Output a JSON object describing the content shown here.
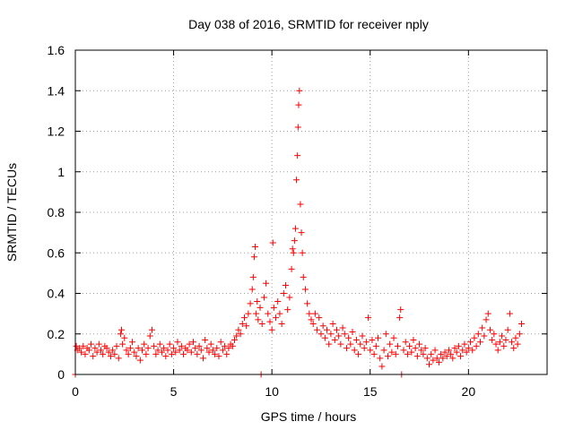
{
  "chart_data": {
    "type": "scatter",
    "title": "Day 038 of 2016, SRMTID for receiver nply",
    "xlabel": "GPS time / hours",
    "ylabel": "SRMTID / TECUs",
    "xlim": [
      0,
      24
    ],
    "ylim": [
      0,
      1.6
    ],
    "xticks": [
      0,
      5,
      10,
      15,
      20
    ],
    "yticks": [
      0,
      0.2,
      0.4,
      0.6,
      0.8,
      1,
      1.2,
      1.4,
      1.6
    ],
    "xtick_labels": [
      "0",
      "5",
      "10",
      "15",
      "20"
    ],
    "ytick_labels": [
      "0",
      "0.2",
      "0.4",
      "0.6",
      "0.8",
      "1",
      "1.2",
      "1.4",
      "1.6"
    ],
    "grid": true,
    "marker": "+",
    "color": "#ff0000",
    "series": [
      {
        "name": "SRMTID",
        "points": [
          [
            0.0,
            0.0
          ],
          [
            0.05,
            0.14
          ],
          [
            0.1,
            0.12
          ],
          [
            0.2,
            0.13
          ],
          [
            0.3,
            0.11
          ],
          [
            0.4,
            0.14
          ],
          [
            0.5,
            0.1
          ],
          [
            0.6,
            0.13
          ],
          [
            0.7,
            0.12
          ],
          [
            0.8,
            0.15
          ],
          [
            0.9,
            0.09
          ],
          [
            1.0,
            0.13
          ],
          [
            1.1,
            0.11
          ],
          [
            1.2,
            0.15
          ],
          [
            1.3,
            0.12
          ],
          [
            1.4,
            0.1
          ],
          [
            1.5,
            0.14
          ],
          [
            1.6,
            0.13
          ],
          [
            1.7,
            0.11
          ],
          [
            1.8,
            0.09
          ],
          [
            1.9,
            0.12
          ],
          [
            2.0,
            0.1
          ],
          [
            2.1,
            0.14
          ],
          [
            2.2,
            0.08
          ],
          [
            2.3,
            0.2
          ],
          [
            2.35,
            0.22
          ],
          [
            2.4,
            0.15
          ],
          [
            2.5,
            0.18
          ],
          [
            2.6,
            0.12
          ],
          [
            2.7,
            0.1
          ],
          [
            2.8,
            0.13
          ],
          [
            2.9,
            0.16
          ],
          [
            3.0,
            0.11
          ],
          [
            3.1,
            0.09
          ],
          [
            3.2,
            0.13
          ],
          [
            3.3,
            0.07
          ],
          [
            3.4,
            0.12
          ],
          [
            3.5,
            0.15
          ],
          [
            3.6,
            0.1
          ],
          [
            3.7,
            0.13
          ],
          [
            3.8,
            0.19
          ],
          [
            3.9,
            0.22
          ],
          [
            4.0,
            0.14
          ],
          [
            4.1,
            0.1
          ],
          [
            4.2,
            0.12
          ],
          [
            4.3,
            0.15
          ],
          [
            4.4,
            0.11
          ],
          [
            4.5,
            0.13
          ],
          [
            4.6,
            0.09
          ],
          [
            4.7,
            0.12
          ],
          [
            4.8,
            0.15
          ],
          [
            4.9,
            0.1
          ],
          [
            5.0,
            0.13
          ],
          [
            5.1,
            0.11
          ],
          [
            5.2,
            0.16
          ],
          [
            5.3,
            0.12
          ],
          [
            5.4,
            0.14
          ],
          [
            5.5,
            0.1
          ],
          [
            5.6,
            0.13
          ],
          [
            5.7,
            0.12
          ],
          [
            5.8,
            0.15
          ],
          [
            5.9,
            0.11
          ],
          [
            6.0,
            0.16
          ],
          [
            6.1,
            0.13
          ],
          [
            6.2,
            0.1
          ],
          [
            6.3,
            0.14
          ],
          [
            6.4,
            0.12
          ],
          [
            6.5,
            0.08
          ],
          [
            6.6,
            0.17
          ],
          [
            6.7,
            0.13
          ],
          [
            6.8,
            0.11
          ],
          [
            6.9,
            0.15
          ],
          [
            7.0,
            0.12
          ],
          [
            7.1,
            0.1
          ],
          [
            7.2,
            0.13
          ],
          [
            7.3,
            0.09
          ],
          [
            7.4,
            0.16
          ],
          [
            7.5,
            0.12
          ],
          [
            7.6,
            0.14
          ],
          [
            7.7,
            0.1
          ],
          [
            7.8,
            0.13
          ],
          [
            7.9,
            0.15
          ],
          [
            8.0,
            0.14
          ],
          [
            8.1,
            0.17
          ],
          [
            8.2,
            0.19
          ],
          [
            8.3,
            0.22
          ],
          [
            8.4,
            0.2
          ],
          [
            8.5,
            0.25
          ],
          [
            8.6,
            0.28
          ],
          [
            8.7,
            0.24
          ],
          [
            8.8,
            0.3
          ],
          [
            8.9,
            0.35
          ],
          [
            9.0,
            0.42
          ],
          [
            9.05,
            0.48
          ],
          [
            9.1,
            0.58
          ],
          [
            9.15,
            0.63
          ],
          [
            9.2,
            0.3
          ],
          [
            9.25,
            0.36
          ],
          [
            9.3,
            0.27
          ],
          [
            9.4,
            0.33
          ],
          [
            9.45,
            0.0
          ],
          [
            9.5,
            0.25
          ],
          [
            9.6,
            0.38
          ],
          [
            9.7,
            0.45
          ],
          [
            9.8,
            0.3
          ],
          [
            9.9,
            0.26
          ],
          [
            10.0,
            0.22
          ],
          [
            10.05,
            0.65
          ],
          [
            10.1,
            0.33
          ],
          [
            10.2,
            0.28
          ],
          [
            10.3,
            0.36
          ],
          [
            10.4,
            0.3
          ],
          [
            10.5,
            0.25
          ],
          [
            10.6,
            0.4
          ],
          [
            10.7,
            0.44
          ],
          [
            10.8,
            0.32
          ],
          [
            10.9,
            0.38
          ],
          [
            11.0,
            0.52
          ],
          [
            11.05,
            0.62
          ],
          [
            11.1,
            0.6
          ],
          [
            11.15,
            0.66
          ],
          [
            11.2,
            0.72
          ],
          [
            11.25,
            0.96
          ],
          [
            11.3,
            1.08
          ],
          [
            11.33,
            1.22
          ],
          [
            11.36,
            1.33
          ],
          [
            11.4,
            1.4
          ],
          [
            11.45,
            0.84
          ],
          [
            11.5,
            0.7
          ],
          [
            11.55,
            0.6
          ],
          [
            11.6,
            0.48
          ],
          [
            11.7,
            0.42
          ],
          [
            11.8,
            0.35
          ],
          [
            11.9,
            0.3
          ],
          [
            12.0,
            0.27
          ],
          [
            12.1,
            0.25
          ],
          [
            12.2,
            0.3
          ],
          [
            12.3,
            0.22
          ],
          [
            12.4,
            0.28
          ],
          [
            12.5,
            0.2
          ],
          [
            12.6,
            0.24
          ],
          [
            12.7,
            0.18
          ],
          [
            12.8,
            0.22
          ],
          [
            12.9,
            0.15
          ],
          [
            13.0,
            0.2
          ],
          [
            13.1,
            0.25
          ],
          [
            13.2,
            0.17
          ],
          [
            13.3,
            0.22
          ],
          [
            13.4,
            0.19
          ],
          [
            13.5,
            0.15
          ],
          [
            13.6,
            0.23
          ],
          [
            13.7,
            0.2
          ],
          [
            13.8,
            0.13
          ],
          [
            13.9,
            0.18
          ],
          [
            14.0,
            0.15
          ],
          [
            14.1,
            0.21
          ],
          [
            14.2,
            0.12
          ],
          [
            14.3,
            0.17
          ],
          [
            14.4,
            0.1
          ],
          [
            14.5,
            0.15
          ],
          [
            14.6,
            0.19
          ],
          [
            14.7,
            0.13
          ],
          [
            14.8,
            0.16
          ],
          [
            14.9,
            0.28
          ],
          [
            15.0,
            0.12
          ],
          [
            15.1,
            0.17
          ],
          [
            15.2,
            0.1
          ],
          [
            15.3,
            0.14
          ],
          [
            15.4,
            0.18
          ],
          [
            15.5,
            0.08
          ],
          [
            15.6,
            0.04
          ],
          [
            15.7,
            0.12
          ],
          [
            15.8,
            0.2
          ],
          [
            15.9,
            0.09
          ],
          [
            16.0,
            0.15
          ],
          [
            16.1,
            0.11
          ],
          [
            16.2,
            0.18
          ],
          [
            16.3,
            0.1
          ],
          [
            16.4,
            0.14
          ],
          [
            16.5,
            0.28
          ],
          [
            16.55,
            0.32
          ],
          [
            16.6,
            0.0
          ],
          [
            16.7,
            0.12
          ],
          [
            16.8,
            0.16
          ],
          [
            16.9,
            0.1
          ],
          [
            17.0,
            0.14
          ],
          [
            17.1,
            0.11
          ],
          [
            17.2,
            0.17
          ],
          [
            17.3,
            0.13
          ],
          [
            17.4,
            0.09
          ],
          [
            17.5,
            0.15
          ],
          [
            17.6,
            0.12
          ],
          [
            17.7,
            0.1
          ],
          [
            17.8,
            0.13
          ],
          [
            17.9,
            0.08
          ],
          [
            18.0,
            0.05
          ],
          [
            18.1,
            0.1
          ],
          [
            18.2,
            0.07
          ],
          [
            18.3,
            0.12
          ],
          [
            18.4,
            0.08
          ],
          [
            18.5,
            0.06
          ],
          [
            18.6,
            0.1
          ],
          [
            18.7,
            0.08
          ],
          [
            18.8,
            0.11
          ],
          [
            18.9,
            0.09
          ],
          [
            19.0,
            0.12
          ],
          [
            19.1,
            0.1
          ],
          [
            19.2,
            0.08
          ],
          [
            19.3,
            0.13
          ],
          [
            19.4,
            0.11
          ],
          [
            19.5,
            0.14
          ],
          [
            19.6,
            0.09
          ],
          [
            19.7,
            0.12
          ],
          [
            19.8,
            0.15
          ],
          [
            19.9,
            0.11
          ],
          [
            20.0,
            0.13
          ],
          [
            20.1,
            0.16
          ],
          [
            20.2,
            0.12
          ],
          [
            20.3,
            0.18
          ],
          [
            20.4,
            0.14
          ],
          [
            20.5,
            0.2
          ],
          [
            20.6,
            0.16
          ],
          [
            20.7,
            0.23
          ],
          [
            20.8,
            0.19
          ],
          [
            20.9,
            0.27
          ],
          [
            21.0,
            0.3
          ],
          [
            21.1,
            0.22
          ],
          [
            21.2,
            0.17
          ],
          [
            21.3,
            0.2
          ],
          [
            21.4,
            0.15
          ],
          [
            21.5,
            0.12
          ],
          [
            21.6,
            0.16
          ],
          [
            21.7,
            0.19
          ],
          [
            21.8,
            0.14
          ],
          [
            21.9,
            0.17
          ],
          [
            22.0,
            0.22
          ],
          [
            22.1,
            0.3
          ],
          [
            22.2,
            0.16
          ],
          [
            22.3,
            0.13
          ],
          [
            22.4,
            0.18
          ],
          [
            22.5,
            0.15
          ],
          [
            22.6,
            0.2
          ],
          [
            22.7,
            0.25
          ]
        ]
      }
    ]
  }
}
